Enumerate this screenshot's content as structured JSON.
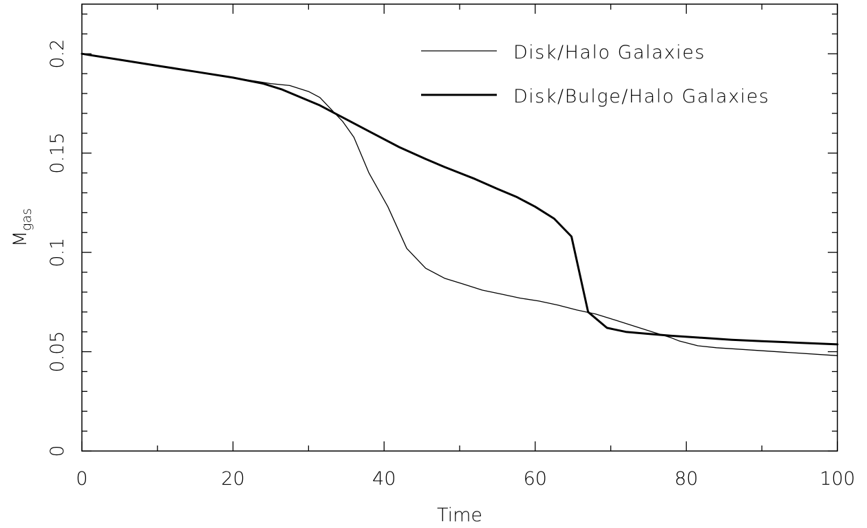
{
  "chart_data": {
    "type": "line",
    "xlabel": "Time",
    "ylabel": "M",
    "ylabel_subscript": "gas",
    "xlim": [
      0,
      100
    ],
    "ylim": [
      0,
      0.225
    ],
    "x_ticks": [
      0,
      20,
      40,
      60,
      80,
      100
    ],
    "x_tick_labels": [
      "0",
      "20",
      "40",
      "60",
      "80",
      "100"
    ],
    "y_ticks": [
      0,
      0.05,
      0.1,
      0.15,
      0.2
    ],
    "y_tick_labels": [
      "0",
      "0.05",
      "0.1",
      "0.15",
      "0.2"
    ],
    "grid": false,
    "legend_position": "top-right",
    "series": [
      {
        "name": "Disk/Halo Galaxies",
        "style": "thin",
        "points": [
          [
            0,
            0.2
          ],
          [
            5,
            0.197
          ],
          [
            10,
            0.194
          ],
          [
            15,
            0.191
          ],
          [
            20,
            0.188
          ],
          [
            25,
            0.185
          ],
          [
            27.5,
            0.184
          ],
          [
            30,
            0.181
          ],
          [
            31.5,
            0.178
          ],
          [
            33,
            0.172
          ],
          [
            34.5,
            0.166
          ],
          [
            36,
            0.158
          ],
          [
            38,
            0.14
          ],
          [
            40.5,
            0.123
          ],
          [
            43,
            0.102
          ],
          [
            45.5,
            0.092
          ],
          [
            48,
            0.087
          ],
          [
            50.5,
            0.084
          ],
          [
            53,
            0.081
          ],
          [
            55.5,
            0.079
          ],
          [
            58,
            0.077
          ],
          [
            60.5,
            0.0755
          ],
          [
            63,
            0.0735
          ],
          [
            65.5,
            0.071
          ],
          [
            68,
            0.069
          ],
          [
            70.5,
            0.066
          ],
          [
            73,
            0.063
          ],
          [
            75.5,
            0.06
          ],
          [
            78,
            0.057
          ],
          [
            79,
            0.0555
          ],
          [
            81.5,
            0.053
          ],
          [
            84,
            0.052
          ],
          [
            88,
            0.051
          ],
          [
            94,
            0.0495
          ],
          [
            100,
            0.048
          ]
        ]
      },
      {
        "name": "Disk/Bulge/Halo Galaxies",
        "style": "thick",
        "points": [
          [
            0,
            0.2
          ],
          [
            5,
            0.197
          ],
          [
            10,
            0.194
          ],
          [
            15,
            0.191
          ],
          [
            20,
            0.188
          ],
          [
            24,
            0.185
          ],
          [
            26.5,
            0.182
          ],
          [
            29,
            0.178
          ],
          [
            31.5,
            0.174
          ],
          [
            34,
            0.169
          ],
          [
            38,
            0.161
          ],
          [
            42,
            0.153
          ],
          [
            45.5,
            0.147
          ],
          [
            48,
            0.143
          ],
          [
            52,
            0.137
          ],
          [
            55,
            0.132
          ],
          [
            57.5,
            0.128
          ],
          [
            60,
            0.123
          ],
          [
            62.5,
            0.117
          ],
          [
            64.8,
            0.108
          ],
          [
            67,
            0.07
          ],
          [
            69.5,
            0.062
          ],
          [
            72,
            0.06
          ],
          [
            75,
            0.059
          ],
          [
            78,
            0.058
          ],
          [
            82,
            0.057
          ],
          [
            86,
            0.056
          ],
          [
            90,
            0.0553
          ],
          [
            95,
            0.0545
          ],
          [
            100,
            0.0537
          ]
        ]
      }
    ]
  }
}
